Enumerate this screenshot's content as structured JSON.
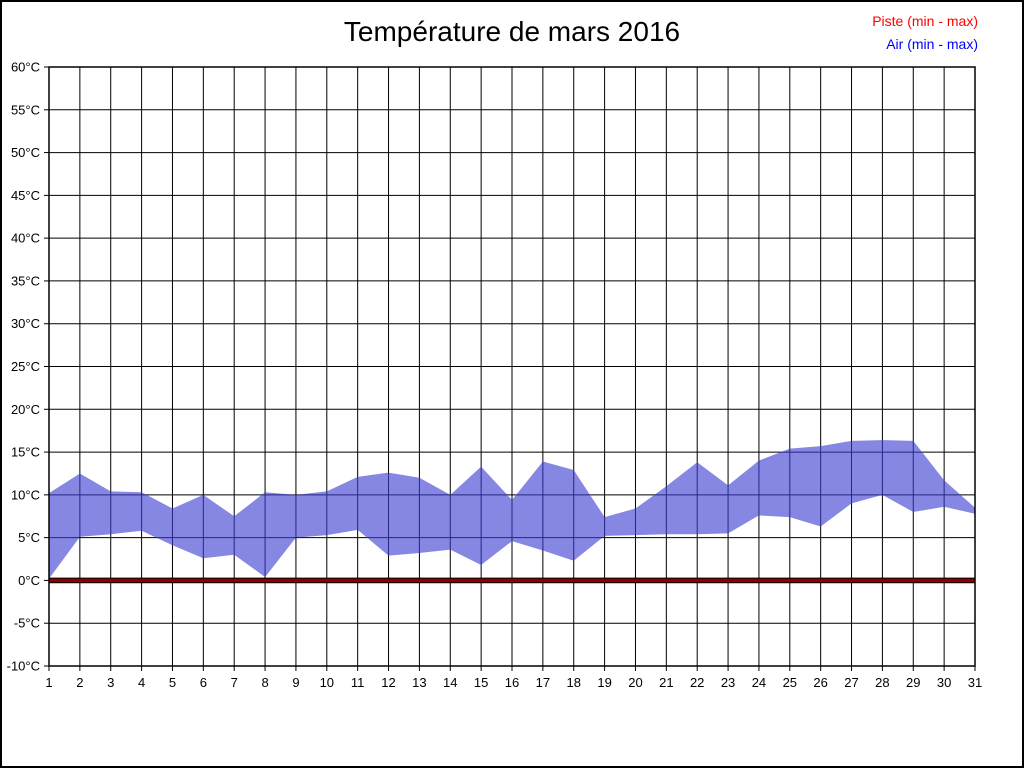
{
  "header": {
    "title": "Température de mars 2016"
  },
  "legend": {
    "items": [
      {
        "label": "Piste (min - max)",
        "color": "#ff0000"
      },
      {
        "label": "Air (min - max)",
        "color": "#0000ff"
      }
    ]
  },
  "chart_data": {
    "type": "area",
    "title": "Température de mars 2016",
    "xlabel": "",
    "ylabel": "",
    "x": [
      1,
      2,
      3,
      4,
      5,
      6,
      7,
      8,
      9,
      10,
      11,
      12,
      13,
      14,
      15,
      16,
      17,
      18,
      19,
      20,
      21,
      22,
      23,
      24,
      25,
      26,
      27,
      28,
      29,
      30,
      31
    ],
    "ylim": [
      -10,
      60
    ],
    "ytick_step": 5,
    "ytick_suffix": "°C",
    "grid": true,
    "grid_color": "#000000",
    "frame_color": "#000000",
    "legend_position": "top-right",
    "series": [
      {
        "name": "Piste (min - max)",
        "legend_color": "#ff0000",
        "band_fill": "#8B0000",
        "band_opacity": 1,
        "band_stroke": "#000000",
        "min": [
          0,
          0,
          0,
          0,
          0,
          0,
          0,
          0,
          0,
          0,
          0,
          0,
          0,
          0,
          0,
          0,
          0,
          0,
          0,
          0,
          0,
          0,
          0,
          0,
          0,
          0,
          0,
          0,
          0,
          0,
          0
        ],
        "max": [
          0,
          0,
          0,
          0,
          0,
          0,
          0,
          0,
          0,
          0,
          0,
          0,
          0,
          0,
          0,
          0,
          0,
          0,
          0,
          0,
          0,
          0,
          0,
          0,
          0,
          0,
          0,
          0,
          0,
          0,
          0
        ]
      },
      {
        "name": "Air (min - max)",
        "legend_color": "#0000ff",
        "band_fill": "#3C3CD2",
        "band_opacity": 0.62,
        "band_stroke": "none",
        "min": [
          0.2,
          5.1,
          5.4,
          5.8,
          4.1,
          2.6,
          3.0,
          0.4,
          5.0,
          5.3,
          5.9,
          2.9,
          3.2,
          3.6,
          1.8,
          4.6,
          3.5,
          2.3,
          5.2,
          5.3,
          5.4,
          5.4,
          5.5,
          7.6,
          7.4,
          6.3,
          9.0,
          10.0,
          8.0,
          8.6,
          7.8
        ],
        "max": [
          10.2,
          12.5,
          10.4,
          10.3,
          8.4,
          10.0,
          7.5,
          10.3,
          10.0,
          10.4,
          12.1,
          12.6,
          12.0,
          10.0,
          13.3,
          9.4,
          13.9,
          12.9,
          7.4,
          8.4,
          11.0,
          13.8,
          11.1,
          14.0,
          15.4,
          15.7,
          16.3,
          16.4,
          16.3,
          11.7,
          8.5
        ]
      }
    ]
  }
}
